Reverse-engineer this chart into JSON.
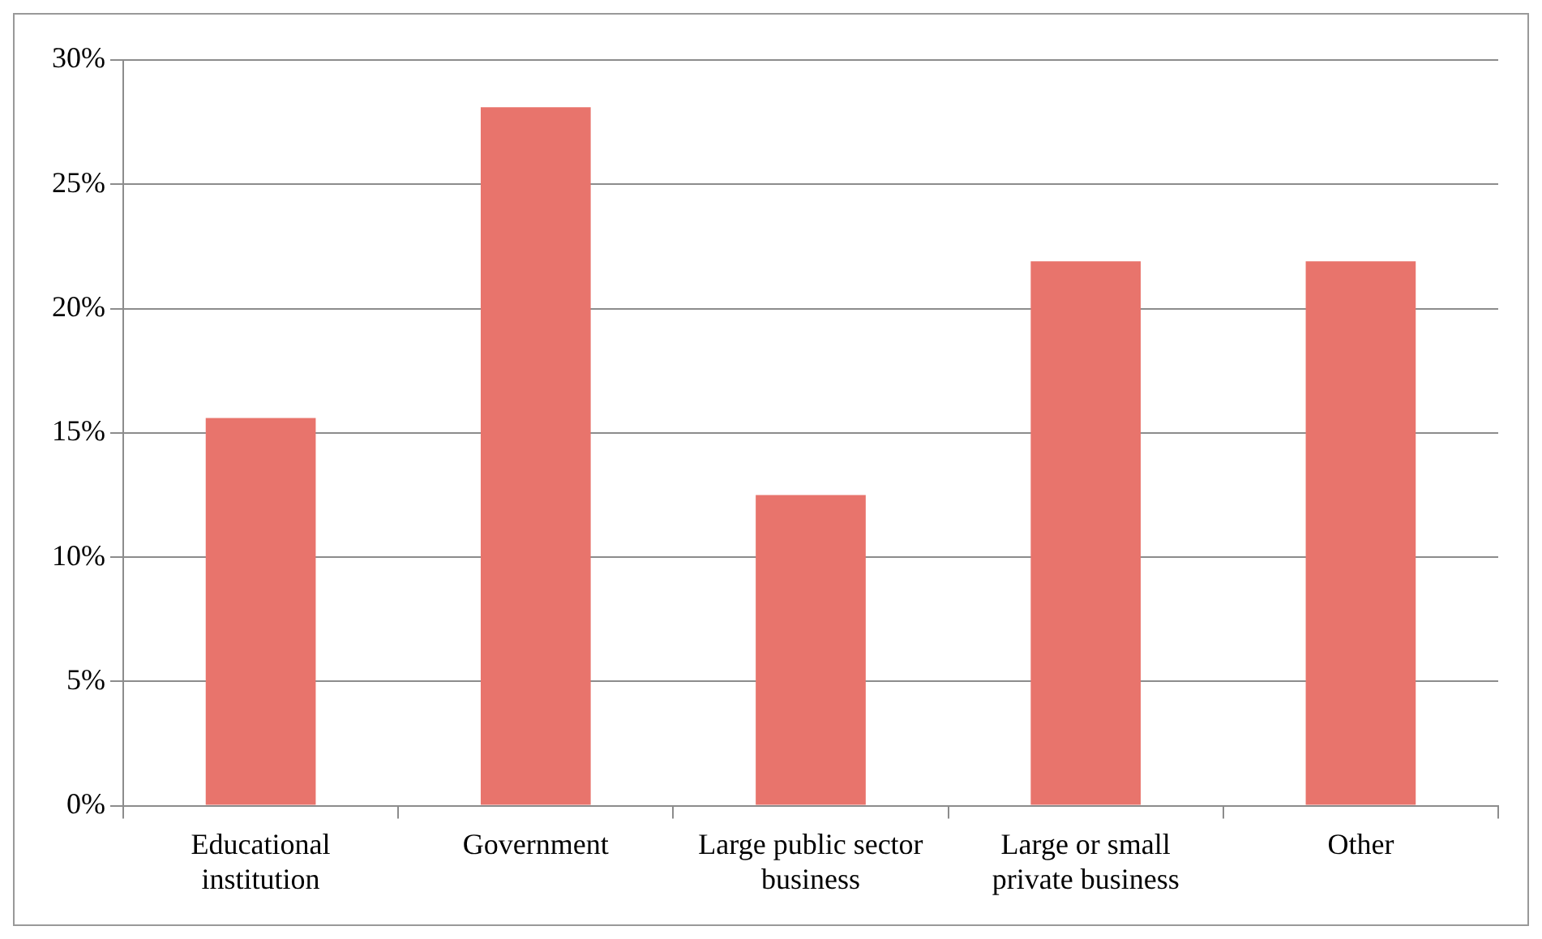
{
  "chart_data": {
    "type": "bar",
    "categories": [
      "Educational institution",
      "Government",
      "Large public sector business",
      "Large or small private business",
      "Other"
    ],
    "values": [
      15.6,
      28.1,
      12.5,
      21.9,
      21.9
    ],
    "color": "#e8746c",
    "ylim": [
      0,
      30
    ],
    "yticks": [
      {
        "value": 0,
        "label": "0%"
      },
      {
        "value": 5,
        "label": "5%"
      },
      {
        "value": 10,
        "label": "10%"
      },
      {
        "value": 15,
        "label": "15%"
      },
      {
        "value": 20,
        "label": "20%"
      },
      {
        "value": 25,
        "label": "25%"
      },
      {
        "value": 30,
        "label": "30%"
      }
    ],
    "grid": "y"
  }
}
